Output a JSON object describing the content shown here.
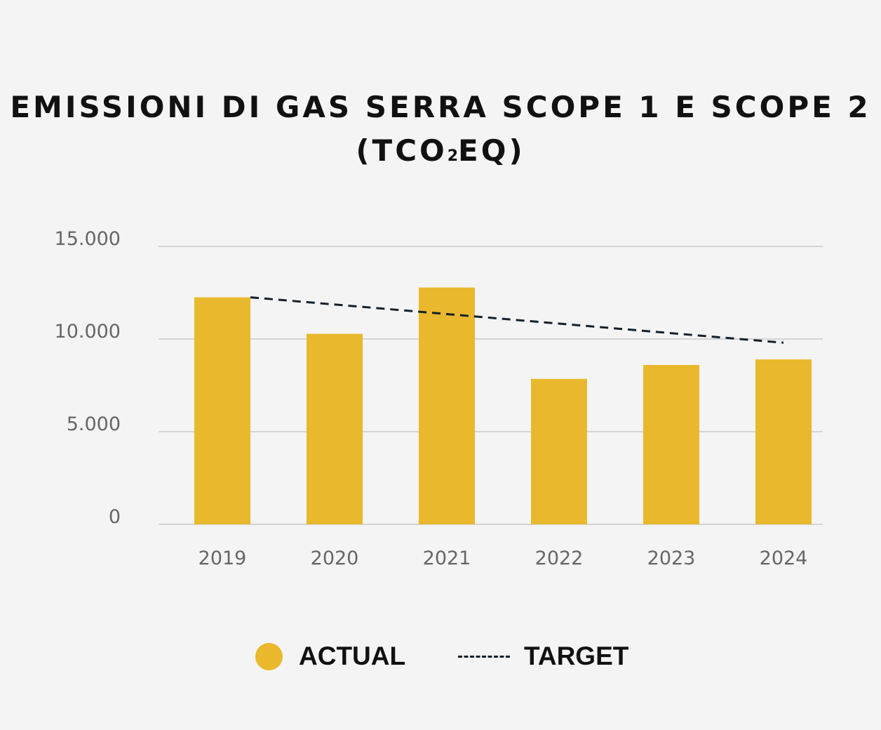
{
  "chart_data": {
    "type": "bar",
    "title_line1": "EMISSIONI DI GAS SERRA SCOPE 1 E SCOPE 2",
    "title_line2_prefix": "(TCO",
    "title_line2_sub": "2",
    "title_line2_suffix": "EQ)",
    "xlabel": "",
    "ylabel": "",
    "categories": [
      "2019",
      "2020",
      "2021",
      "2022",
      "2023",
      "2024"
    ],
    "series": [
      {
        "name": "ACTUAL",
        "kind": "bar",
        "color": "#e9b82c",
        "values": [
          12250,
          10280,
          12780,
          7850,
          8600,
          8900
        ]
      },
      {
        "name": "TARGET",
        "kind": "dashed-line",
        "color": "#15202b",
        "points": [
          {
            "x": "2019",
            "y": 12250
          },
          {
            "x": "2024",
            "y": 9800
          }
        ]
      }
    ],
    "ylim": [
      0,
      15000
    ],
    "yticks": [
      {
        "value": 0,
        "label": "0"
      },
      {
        "value": 5000,
        "label": "5.000"
      },
      {
        "value": 10000,
        "label": "10.000"
      },
      {
        "value": 15000,
        "label": "15.000"
      }
    ],
    "grid": true,
    "legend_position": "bottom",
    "colors": {
      "background": "#f4f4f4",
      "grid": "#d4d4d4",
      "tick_label": "#666666",
      "title": "#111111"
    }
  }
}
